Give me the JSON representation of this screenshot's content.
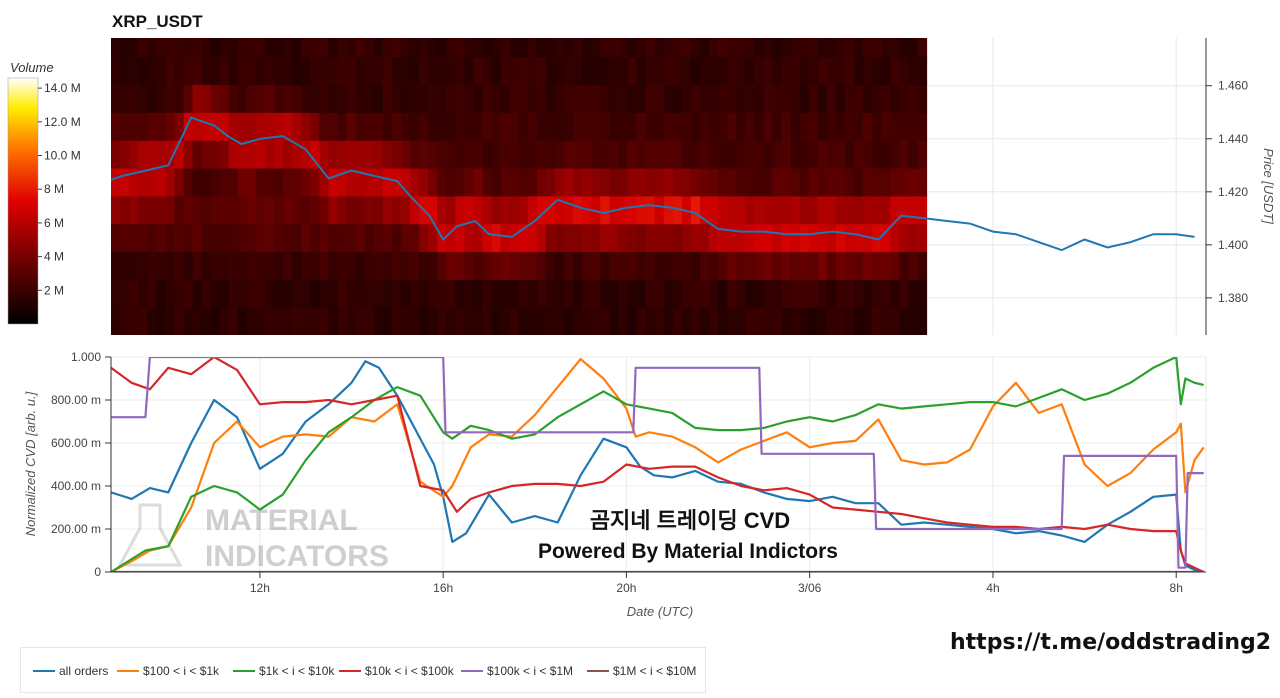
{
  "chart_data": [
    {
      "type": "heatmap",
      "title": "XRP_USDT",
      "ylabel": "Price [USDT]",
      "ylim": [
        1.366,
        1.478
      ],
      "y_ticks": [
        "1.380",
        "1.400",
        "1.420",
        "1.440",
        "1.460"
      ],
      "colorbar": {
        "title": "Volume",
        "ticks": [
          "2 M",
          "4 M",
          "6 M",
          "8 M",
          "10.0 M",
          "12.0 M",
          "14.0 M"
        ]
      },
      "heatmap_intensity_by_price_band": [
        {
          "price": 1.376,
          "level": 0.1
        },
        {
          "price": 1.386,
          "level": 0.12
        },
        {
          "price": 1.396,
          "level": 0.25
        },
        {
          "price": 1.406,
          "level": 0.55
        },
        {
          "price": 1.416,
          "level": 0.7
        },
        {
          "price": 1.426,
          "level": 0.45
        },
        {
          "price": 1.436,
          "level": 0.4
        },
        {
          "price": 1.446,
          "level": 0.35
        },
        {
          "price": 1.456,
          "level": 0.18
        },
        {
          "price": 1.466,
          "level": 0.15
        }
      ],
      "series": [
        {
          "color": "#1f77b4",
          "x": [
            8.5,
            9.0,
            9.5,
            10.0,
            10.5,
            11.0,
            11.3,
            11.6,
            12.0,
            12.5,
            13.0,
            13.5,
            14.0,
            14.5,
            15.0,
            15.3,
            15.7,
            16.0,
            16.3,
            16.7,
            17.0,
            17.5,
            18.0,
            18.5,
            19.0,
            19.5,
            20.0,
            20.5,
            21.0,
            21.5,
            22.0,
            22.5,
            23.0,
            23.5,
            24.0,
            24.5,
            25.0,
            25.5,
            26.0,
            26.5,
            27.0,
            27.5,
            28.0,
            28.5,
            29.0,
            29.5,
            30.0,
            30.5,
            31.0,
            31.5,
            32.0,
            32.4
          ],
          "y": [
            1.423,
            1.426,
            1.428,
            1.43,
            1.448,
            1.445,
            1.441,
            1.438,
            1.44,
            1.441,
            1.436,
            1.425,
            1.428,
            1.426,
            1.424,
            1.418,
            1.411,
            1.402,
            1.407,
            1.409,
            1.404,
            1.403,
            1.409,
            1.417,
            1.414,
            1.412,
            1.414,
            1.415,
            1.414,
            1.412,
            1.406,
            1.405,
            1.405,
            1.404,
            1.404,
            1.405,
            1.404,
            1.402,
            1.411,
            1.41,
            1.409,
            1.408,
            1.405,
            1.404,
            1.401,
            1.398,
            1.402,
            1.399,
            1.401,
            1.404,
            1.404,
            1.403
          ]
        }
      ],
      "x_ticks": [
        {
          "x": 12,
          "label": "12h"
        },
        {
          "x": 16,
          "label": "16h"
        },
        {
          "x": 20,
          "label": "20h"
        },
        {
          "x": 24,
          "label": "3/06"
        },
        {
          "x": 28,
          "label": "4h"
        },
        {
          "x": 32,
          "label": "8h"
        }
      ],
      "x_range": [
        8.75,
        32.65
      ],
      "heatmap_end_x": 26.55
    },
    {
      "type": "line",
      "xlabel": "Date (UTC)",
      "ylabel": "Normalized CVD [arb. u.]",
      "ylim": [
        0,
        1.0
      ],
      "y_ticks": [
        "0",
        "200.00 m",
        "400.00 m",
        "600.00 m",
        "800.00 m",
        "1.000"
      ],
      "series": [
        {
          "name": "all orders",
          "color": "#1f77b4",
          "x": [
            8.75,
            9.2,
            9.6,
            10.0,
            10.5,
            11.0,
            11.5,
            12.0,
            12.5,
            13.0,
            13.5,
            14.0,
            14.3,
            14.6,
            15.0,
            15.4,
            15.8,
            16.0,
            16.2,
            16.5,
            17.0,
            17.5,
            18.0,
            18.5,
            19.0,
            19.5,
            20.0,
            20.3,
            20.6,
            21.0,
            21.5,
            22.0,
            22.5,
            23.0,
            23.5,
            24.0,
            24.5,
            25.0,
            25.5,
            26.0,
            26.5,
            27.0,
            27.5,
            28.0,
            28.5,
            29.0,
            29.5,
            30.0,
            30.5,
            31.0,
            31.5,
            32.0,
            32.1,
            32.2,
            32.4,
            32.6
          ],
          "y": [
            0.37,
            0.34,
            0.39,
            0.37,
            0.6,
            0.8,
            0.72,
            0.48,
            0.55,
            0.7,
            0.78,
            0.88,
            0.98,
            0.95,
            0.82,
            0.66,
            0.5,
            0.35,
            0.14,
            0.18,
            0.36,
            0.23,
            0.26,
            0.23,
            0.45,
            0.62,
            0.58,
            0.49,
            0.45,
            0.44,
            0.47,
            0.42,
            0.41,
            0.37,
            0.34,
            0.33,
            0.35,
            0.32,
            0.32,
            0.22,
            0.23,
            0.22,
            0.21,
            0.2,
            0.18,
            0.19,
            0.17,
            0.14,
            0.22,
            0.28,
            0.35,
            0.36,
            0.1,
            0.03,
            0.01,
            0.0
          ]
        },
        {
          "name": "$100 < i < $1k",
          "color": "#ff7f0e",
          "x": [
            8.75,
            9.2,
            9.6,
            10.0,
            10.5,
            11.0,
            11.5,
            12.0,
            12.5,
            13.0,
            13.5,
            14.0,
            14.5,
            15.0,
            15.5,
            16.0,
            16.2,
            16.6,
            17.0,
            17.5,
            18.0,
            18.5,
            19.0,
            19.5,
            20.0,
            20.2,
            20.5,
            21.0,
            21.5,
            22.0,
            22.5,
            23.0,
            23.5,
            24.0,
            24.5,
            25.0,
            25.5,
            26.0,
            26.5,
            27.0,
            27.5,
            28.0,
            28.5,
            29.0,
            29.5,
            30.0,
            30.5,
            31.0,
            31.5,
            32.0,
            32.1,
            32.2,
            32.4,
            32.6
          ],
          "y": [
            0.0,
            0.05,
            0.1,
            0.12,
            0.3,
            0.6,
            0.7,
            0.58,
            0.63,
            0.64,
            0.63,
            0.72,
            0.7,
            0.78,
            0.42,
            0.35,
            0.4,
            0.58,
            0.64,
            0.63,
            0.73,
            0.86,
            0.99,
            0.9,
            0.76,
            0.63,
            0.65,
            0.63,
            0.58,
            0.51,
            0.57,
            0.61,
            0.65,
            0.58,
            0.6,
            0.61,
            0.71,
            0.52,
            0.5,
            0.51,
            0.57,
            0.77,
            0.88,
            0.74,
            0.78,
            0.5,
            0.4,
            0.46,
            0.57,
            0.65,
            0.69,
            0.37,
            0.52,
            0.58
          ]
        },
        {
          "name": "$1k < i < $10k",
          "color": "#2ca02c",
          "x": [
            8.75,
            9.5,
            10.0,
            10.5,
            11.0,
            11.5,
            12.0,
            12.5,
            13.0,
            13.5,
            14.0,
            14.5,
            15.0,
            15.5,
            16.0,
            16.2,
            16.6,
            17.0,
            17.5,
            18.0,
            18.5,
            19.0,
            19.5,
            20.0,
            20.5,
            21.0,
            21.5,
            22.0,
            22.5,
            23.0,
            23.5,
            24.0,
            24.5,
            25.0,
            25.5,
            26.0,
            26.5,
            27.0,
            27.5,
            28.0,
            28.5,
            29.0,
            29.5,
            30.0,
            30.5,
            31.0,
            31.5,
            32.0,
            32.1,
            32.2,
            32.4,
            32.6
          ],
          "y": [
            0.0,
            0.1,
            0.12,
            0.35,
            0.4,
            0.37,
            0.29,
            0.36,
            0.52,
            0.65,
            0.72,
            0.8,
            0.86,
            0.82,
            0.65,
            0.62,
            0.68,
            0.66,
            0.62,
            0.64,
            0.72,
            0.78,
            0.84,
            0.78,
            0.76,
            0.74,
            0.67,
            0.66,
            0.66,
            0.67,
            0.7,
            0.72,
            0.7,
            0.73,
            0.78,
            0.76,
            0.77,
            0.78,
            0.79,
            0.79,
            0.77,
            0.81,
            0.85,
            0.8,
            0.83,
            0.88,
            0.95,
            1.0,
            0.78,
            0.9,
            0.88,
            0.87
          ]
        },
        {
          "name": "$10k < i < $100k",
          "color": "#d62728",
          "x": [
            8.75,
            9.2,
            9.6,
            10.0,
            10.5,
            11.0,
            11.5,
            12.0,
            12.5,
            13.0,
            13.5,
            14.0,
            14.5,
            15.0,
            15.5,
            16.0,
            16.3,
            16.6,
            17.0,
            17.5,
            18.0,
            18.5,
            19.0,
            19.5,
            20.0,
            20.5,
            21.0,
            21.5,
            22.0,
            22.5,
            23.0,
            23.5,
            24.0,
            24.5,
            25.0,
            25.5,
            26.0,
            26.5,
            27.0,
            27.5,
            28.0,
            28.5,
            29.0,
            29.5,
            30.0,
            30.5,
            31.0,
            31.5,
            32.0,
            32.1,
            32.2,
            32.4,
            32.6
          ],
          "y": [
            0.95,
            0.88,
            0.85,
            0.95,
            0.92,
            1.0,
            0.94,
            0.78,
            0.79,
            0.79,
            0.8,
            0.78,
            0.8,
            0.82,
            0.4,
            0.38,
            0.28,
            0.34,
            0.37,
            0.4,
            0.41,
            0.41,
            0.4,
            0.42,
            0.5,
            0.48,
            0.49,
            0.49,
            0.44,
            0.4,
            0.38,
            0.39,
            0.36,
            0.3,
            0.29,
            0.28,
            0.27,
            0.25,
            0.23,
            0.22,
            0.21,
            0.21,
            0.2,
            0.21,
            0.2,
            0.22,
            0.2,
            0.19,
            0.19,
            0.1,
            0.04,
            0.02,
            0.0
          ]
        },
        {
          "name": "$100k < i < $1M",
          "color": "#9467bd",
          "x": [
            8.75,
            9.5,
            9.6,
            16.0,
            16.05,
            20.15,
            20.2,
            22.9,
            22.95,
            25.4,
            25.45,
            29.5,
            29.55,
            32.0,
            32.05,
            32.2,
            32.25,
            32.6
          ],
          "y": [
            0.72,
            0.72,
            1.0,
            1.0,
            0.65,
            0.65,
            0.95,
            0.95,
            0.55,
            0.55,
            0.2,
            0.2,
            0.54,
            0.54,
            0.02,
            0.02,
            0.46,
            0.46
          ]
        },
        {
          "name": "$1M < i < $10M",
          "color": "#8c564b",
          "x": [
            8.75,
            32.6
          ],
          "y": [
            0,
            0
          ]
        }
      ],
      "x_ticks": [
        {
          "x": 12,
          "label": "12h"
        },
        {
          "x": 16,
          "label": "16h"
        },
        {
          "x": 20,
          "label": "20h"
        },
        {
          "x": 24,
          "label": "3/06"
        },
        {
          "x": 28,
          "label": "4h"
        },
        {
          "x": 32,
          "label": "8h"
        }
      ],
      "x_range": [
        8.75,
        32.65
      ]
    }
  ],
  "watermark": {
    "line1": "곰지네 트레이딩 CVD",
    "line2": "Powered By Material Indictors",
    "logo_line1": "MATERIAL",
    "logo_line2": "INDICATORS"
  },
  "legend": [
    {
      "label": "all orders",
      "color": "#1f77b4"
    },
    {
      "label": "$100 < i < $1k",
      "color": "#ff7f0e"
    },
    {
      "label": "$1k < i < $10k",
      "color": "#2ca02c"
    },
    {
      "label": "$10k < i < $100k",
      "color": "#d62728"
    },
    {
      "label": "$100k < i < $1M",
      "color": "#9467bd"
    },
    {
      "label": "$1M < i < $10M",
      "color": "#8c564b"
    }
  ],
  "footer_url": "https://t.me/oddstrading2"
}
